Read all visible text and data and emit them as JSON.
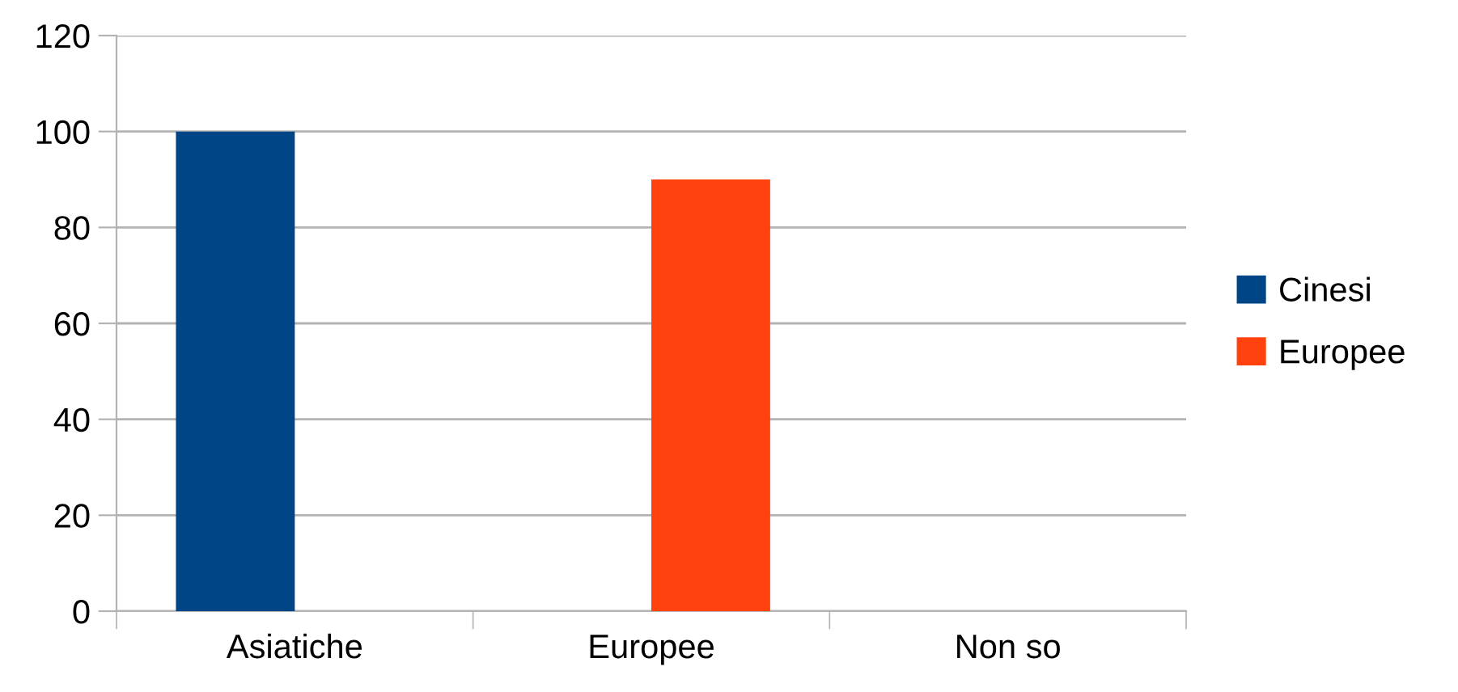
{
  "chart_data": {
    "type": "bar",
    "categories": [
      "Asiatiche",
      "Europee",
      "Non so"
    ],
    "series": [
      {
        "name": "Cinesi",
        "color": "#004586",
        "values": [
          100,
          null,
          null
        ]
      },
      {
        "name": "Europee",
        "color": "#ff420e",
        "values": [
          null,
          90,
          null
        ]
      }
    ],
    "ylim": [
      0,
      120
    ],
    "yticks": [
      0,
      20,
      40,
      60,
      80,
      100,
      120
    ],
    "grid": "y",
    "legend": "right"
  }
}
